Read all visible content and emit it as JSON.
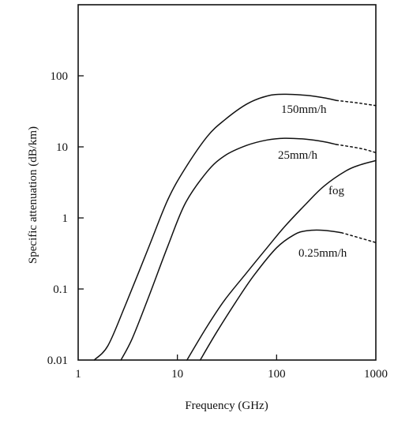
{
  "chart_data": {
    "type": "line",
    "xlabel": "Frequency (GHz)",
    "ylabel": "Specific attenuation (dB/km)",
    "x_scale": "log",
    "y_scale": "log",
    "xlim": [
      1,
      1000
    ],
    "ylim": [
      0.01,
      1000
    ],
    "grid": false,
    "legend": "inline labels",
    "x_ticks": [
      1,
      10,
      100,
      1000
    ],
    "x_tick_labels": [
      "1",
      "10",
      "100",
      "1000"
    ],
    "y_ticks": [
      0.01,
      0.1,
      1,
      10,
      100
    ],
    "y_tick_labels": [
      "0.01",
      "0.1",
      "1",
      "10",
      "100"
    ],
    "series": [
      {
        "name": "150mm/h",
        "x": [
          1.45,
          2.0,
          3.0,
          5.0,
          8.0,
          12,
          20,
          30,
          50,
          80,
          120,
          200,
          300,
          400
        ],
        "y": [
          0.01,
          0.016,
          0.06,
          0.35,
          1.8,
          5.0,
          14,
          24,
          40,
          52,
          55,
          53,
          49,
          45
        ],
        "extrapolated": {
          "x": [
            400,
            700,
            1000
          ],
          "y": [
            45,
            41,
            38
          ]
        }
      },
      {
        "name": "25mm/h",
        "x": [
          2.7,
          3.5,
          5.0,
          8.0,
          12,
          20,
          30,
          50,
          80,
          120,
          200,
          300,
          400
        ],
        "y": [
          0.01,
          0.02,
          0.07,
          0.4,
          1.6,
          4.5,
          7.5,
          10.5,
          12.5,
          13.2,
          12.8,
          11.8,
          10.8
        ],
        "extrapolated": {
          "x": [
            400,
            700,
            1000
          ],
          "y": [
            10.8,
            9.5,
            8.3
          ]
        }
      },
      {
        "name": "fog",
        "x": [
          12.5,
          20,
          30,
          50,
          80,
          120,
          200,
          300,
          500,
          700,
          1000
        ],
        "y": [
          0.01,
          0.03,
          0.07,
          0.17,
          0.38,
          0.75,
          1.6,
          2.8,
          4.6,
          5.6,
          6.4
        ]
      },
      {
        "name": "0.25mm/h",
        "x": [
          17,
          25,
          40,
          60,
          100,
          150,
          200,
          300,
          450
        ],
        "y": [
          0.01,
          0.025,
          0.07,
          0.16,
          0.38,
          0.58,
          0.66,
          0.67,
          0.62
        ],
        "extrapolated": {
          "x": [
            450,
            700,
            1000
          ],
          "y": [
            0.62,
            0.52,
            0.45
          ]
        }
      }
    ],
    "annotations": [
      "150mm/h",
      "25mm/h",
      "fog",
      "0.25mm/h"
    ]
  }
}
